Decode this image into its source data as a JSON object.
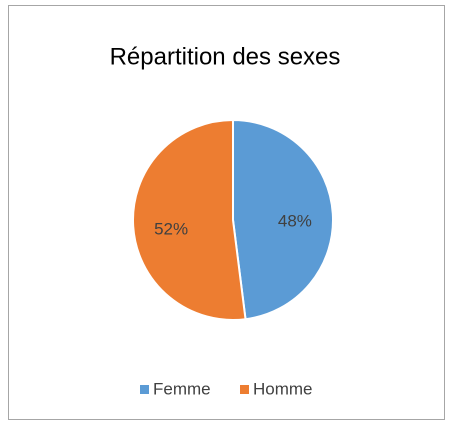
{
  "chart_data": {
    "type": "pie",
    "title": "Répartition des sexes",
    "categories": [
      "Femme",
      "Homme"
    ],
    "values": [
      48,
      52
    ],
    "value_labels": [
      "48%",
      "52%"
    ],
    "colors": [
      "#5b9bd5",
      "#ed7d31"
    ],
    "legend": "bottom"
  }
}
